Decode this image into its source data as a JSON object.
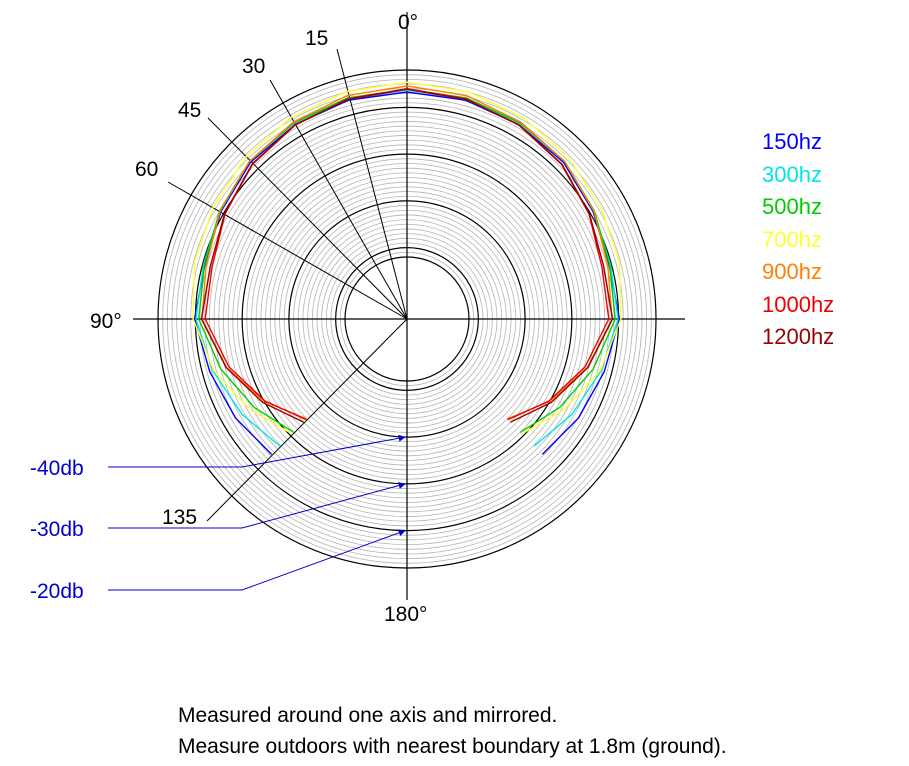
{
  "chart_data": {
    "type": "polar-line",
    "radial_unit": "db",
    "radial_range": [
      -52,
      -12
    ],
    "angle_labels_ring": [
      {
        "angle": 0,
        "text": "0°"
      },
      {
        "angle": 90,
        "text": "90°"
      },
      {
        "angle": 180,
        "text": "180°"
      }
    ],
    "angle_labels_ray": [
      {
        "angle": 15,
        "text": "15"
      },
      {
        "angle": 30,
        "text": "30"
      },
      {
        "angle": 45,
        "text": "45"
      },
      {
        "angle": 60,
        "text": "60"
      },
      {
        "angle": 135,
        "text": "135"
      }
    ],
    "ring_labels": [
      {
        "db": -40,
        "text": "-40db"
      },
      {
        "db": -30,
        "text": "-30db"
      },
      {
        "db": -20,
        "text": "-20db"
      }
    ],
    "series": [
      {
        "name": "150hz",
        "color": "#0000ff",
        "points": [
          [
            0,
            -16.7
          ],
          [
            15,
            -16.8
          ],
          [
            30,
            -17.3
          ],
          [
            45,
            -17.9
          ],
          [
            60,
            -19.3
          ],
          [
            75,
            -20.5
          ],
          [
            90,
            -19.8
          ],
          [
            105,
            -21.6
          ],
          [
            120,
            -22.9
          ],
          [
            135,
            -24.3
          ]
        ]
      },
      {
        "name": "300hz",
        "color": "#00e5e5",
        "points": [
          [
            0,
            -16.3
          ],
          [
            15,
            -16.5
          ],
          [
            30,
            -16.9
          ],
          [
            45,
            -17.6
          ],
          [
            60,
            -19.1
          ],
          [
            75,
            -20.2
          ],
          [
            90,
            -20.1
          ],
          [
            105,
            -22.3
          ],
          [
            120,
            -24.5
          ],
          [
            135,
            -26.8
          ]
        ]
      },
      {
        "name": "500hz",
        "color": "#00cc00",
        "points": [
          [
            0,
            -16.1
          ],
          [
            15,
            -16.3
          ],
          [
            30,
            -16.8
          ],
          [
            45,
            -17.6
          ],
          [
            60,
            -19.0
          ],
          [
            75,
            -20.4
          ],
          [
            90,
            -20.7
          ],
          [
            105,
            -24.0
          ],
          [
            120,
            -27.5
          ],
          [
            135,
            -31.0
          ]
        ]
      },
      {
        "name": "700hz",
        "color": "#ffff33",
        "points": [
          [
            0,
            -14.6
          ],
          [
            15,
            -14.9
          ],
          [
            30,
            -15.5
          ],
          [
            45,
            -16.4
          ],
          [
            60,
            -17.4
          ],
          [
            75,
            -18.2
          ],
          [
            90,
            -19.5
          ],
          [
            105,
            -22.5
          ],
          [
            120,
            -26.5
          ],
          [
            135,
            -30.5
          ]
        ]
      },
      {
        "name": "900hz",
        "color": "#ff8000",
        "points": [
          [
            0,
            -15.4
          ],
          [
            15,
            -15.8
          ],
          [
            30,
            -16.6
          ],
          [
            45,
            -17.6
          ],
          [
            60,
            -19.1
          ],
          [
            75,
            -20.8
          ],
          [
            90,
            -21.4
          ],
          [
            105,
            -25.3
          ],
          [
            120,
            -30.0
          ],
          [
            135,
            -35.0
          ]
        ]
      },
      {
        "name": "1000hz",
        "color": "#ee0000",
        "points": [
          [
            0,
            -16.0
          ],
          [
            15,
            -16.5
          ],
          [
            30,
            -17.4
          ],
          [
            45,
            -18.5
          ],
          [
            60,
            -20.3
          ],
          [
            75,
            -22.1
          ],
          [
            90,
            -22.1
          ],
          [
            105,
            -25.8
          ],
          [
            120,
            -30.2
          ],
          [
            135,
            -34.8
          ]
        ]
      },
      {
        "name": "1200hz",
        "color": "#990000",
        "points": [
          [
            0,
            -16.1
          ],
          [
            15,
            -16.6
          ],
          [
            30,
            -17.3
          ],
          [
            45,
            -18.4
          ],
          [
            60,
            -20.2
          ],
          [
            75,
            -21.7
          ],
          [
            90,
            -21.3
          ],
          [
            105,
            -25.2
          ],
          [
            120,
            -29.6
          ],
          [
            135,
            -34.0
          ]
        ]
      }
    ],
    "legend_position": "right"
  },
  "notes": [
    "Measured around one axis and mirrored.",
    "Measure outdoors with nearest boundary at 1.8m (ground)."
  ],
  "colors": {
    "grid_minor": "#b4b4b4",
    "grid_major": "#000000",
    "annotation": "#0000cc"
  }
}
